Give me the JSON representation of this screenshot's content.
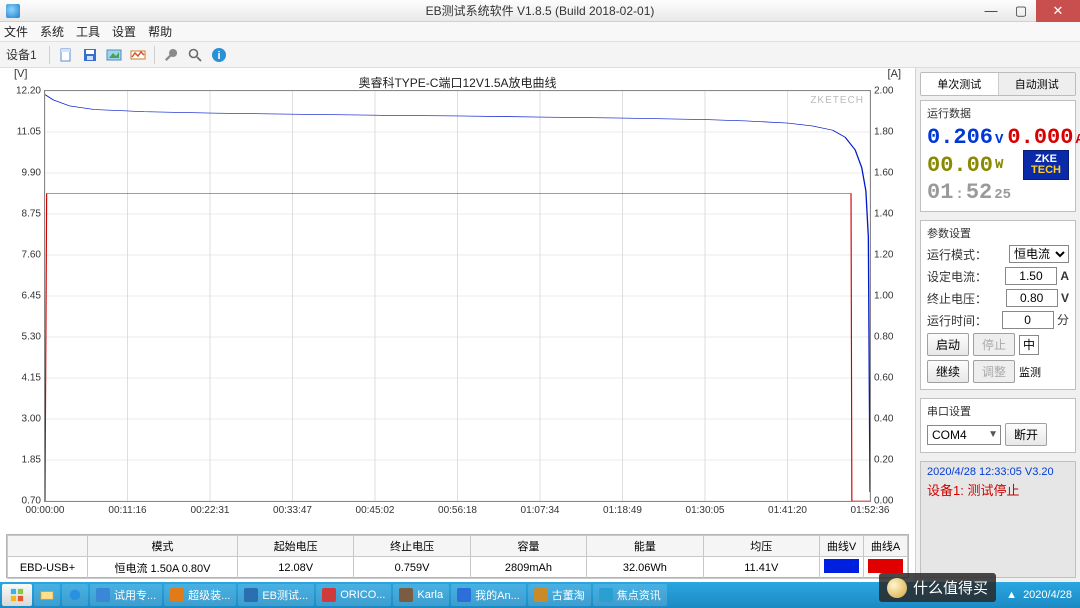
{
  "window": {
    "title": "EB测试系统软件 V1.8.5 (Build 2018-02-01)",
    "min": "—",
    "max": "▢",
    "close": "✕"
  },
  "menu": {
    "items": [
      "文件",
      "系统",
      "工具",
      "设置",
      "帮助"
    ]
  },
  "toolbar": {
    "device_tab": "设备1"
  },
  "chart": {
    "title": "奥睿科TYPE-C端口12V1.5A放电曲线",
    "y_left_label": "[V]",
    "y_right_label": "[A]",
    "watermark": "ZKETECH",
    "y_left_ticks": [
      "12.20",
      "11.05",
      "9.90",
      "8.75",
      "7.60",
      "6.45",
      "5.30",
      "4.15",
      "3.00",
      "1.85",
      "0.70"
    ],
    "y_right_ticks": [
      "2.00",
      "1.80",
      "1.60",
      "1.40",
      "1.20",
      "1.00",
      "0.80",
      "0.60",
      "0.40",
      "0.20",
      "0.00"
    ],
    "x_ticks": [
      "00:00:00",
      "00:11:16",
      "00:22:31",
      "00:33:47",
      "00:45:02",
      "00:56:18",
      "01:07:34",
      "01:18:49",
      "01:30:05",
      "01:41:20",
      "01:52:36"
    ],
    "line_v_color": "#0018c8",
    "line_a_color": "#d00000",
    "v_points": [
      [
        0.0,
        12.1
      ],
      [
        0.01,
        11.95
      ],
      [
        0.03,
        11.78
      ],
      [
        0.06,
        11.68
      ],
      [
        0.12,
        11.62
      ],
      [
        0.2,
        11.58
      ],
      [
        0.3,
        11.55
      ],
      [
        0.4,
        11.52
      ],
      [
        0.5,
        11.5
      ],
      [
        0.6,
        11.47
      ],
      [
        0.7,
        11.44
      ],
      [
        0.8,
        11.4
      ],
      [
        0.85,
        11.36
      ],
      [
        0.9,
        11.3
      ],
      [
        0.93,
        11.22
      ],
      [
        0.955,
        11.1
      ],
      [
        0.97,
        10.9
      ],
      [
        0.982,
        10.55
      ],
      [
        0.99,
        10.05
      ],
      [
        0.995,
        9.4
      ],
      [
        0.998,
        8.1
      ],
      [
        1.0,
        0.95
      ]
    ],
    "a_points": [
      [
        0.0,
        0.0
      ],
      [
        0.002,
        1.5
      ],
      [
        0.01,
        1.5
      ],
      [
        0.5,
        1.5
      ],
      [
        0.977,
        1.5
      ],
      [
        0.978,
        0.0
      ],
      [
        1.0,
        0.0
      ]
    ],
    "y_left_min": 0.7,
    "y_left_max": 12.2,
    "y_right_min": 0.0,
    "y_right_max": 2.0
  },
  "summary": {
    "headers": [
      "",
      "模式",
      "起始电压",
      "终止电压",
      "容量",
      "能量",
      "均压",
      "曲线V",
      "曲线A"
    ],
    "row": {
      "device": "EBD-USB+",
      "mode": "恒电流 1.50A 0.80V",
      "v_start": "12.08V",
      "v_end": "0.759V",
      "capacity": "2809mAh",
      "energy": "32.06Wh",
      "v_avg": "11.41V"
    }
  },
  "side": {
    "tabs": [
      "单次测试",
      "自动测试"
    ],
    "active_tab": 0,
    "realtime_hdr": "运行数据",
    "voltage": "0.206",
    "voltage_u": "V",
    "current": "0.000",
    "current_u": "A",
    "power": "00.00",
    "power_u": "W",
    "elapsed_h": "01",
    "elapsed_m": "52",
    "elapsed_s": "25",
    "logo1": "ZKE",
    "logo2": "TECH",
    "params_hdr": "参数设置",
    "mode_label": "运行模式：",
    "mode_value": "恒电流",
    "seti_label": "设定电流：",
    "seti_value": "1.50",
    "seti_u": "A",
    "vcut_label": "终止电压：",
    "vcut_value": "0.80",
    "vcut_u": "V",
    "time_label": "运行时间：",
    "time_value": "0",
    "time_u": "分",
    "btn_start": "启动",
    "btn_stop": "停止",
    "btn_lock": "中",
    "btn_cont": "继续",
    "btn_adj": "调整",
    "btn_mon": "监测",
    "serial_hdr": "串口设置",
    "serial_port": "COM4",
    "serial_disc": "断开",
    "status_ts": "2020/4/28 12:33:05   V3.20",
    "status_line": "设备1: 测试停止"
  },
  "taskbar": {
    "items": [
      {
        "label": "试用专...",
        "color": "#3a87d8"
      },
      {
        "label": "超级装...",
        "color": "#e07b1a"
      },
      {
        "label": "EB测试...",
        "color": "#2a6fb0"
      },
      {
        "label": "ORICO...",
        "color": "#d03a3a"
      },
      {
        "label": "Karla",
        "color": "#7a5c42"
      },
      {
        "label": "我的An...",
        "color": "#2c6fd8"
      },
      {
        "label": "古董淘",
        "color": "#c98a2a"
      },
      {
        "label": "焦点资讯",
        "color": "#2aa0d0"
      }
    ],
    "tray_time": "2020/4/28",
    "overlay": "什么值得买"
  }
}
